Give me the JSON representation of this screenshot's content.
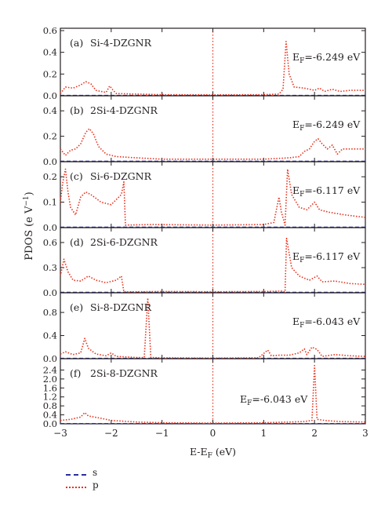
{
  "chart_data": {
    "type": "line",
    "xlabel_main": "E-E",
    "xlabel_sub": "F",
    "xlabel_unit": " (eV)",
    "ylabel_main": "PDOS (e V",
    "ylabel_sup": "−1",
    "ylabel_close": ")",
    "xlim": [
      -3,
      3
    ],
    "x_ticks": [
      -3,
      -2,
      -1,
      0,
      1,
      2,
      3
    ],
    "x_tick_labels": [
      "−3",
      "−2",
      "−1",
      "0",
      "1",
      "2",
      "3"
    ],
    "colors": {
      "s": "#2b2d9c",
      "p": "#e8301c",
      "axis": "#231f20"
    },
    "legend": [
      {
        "key": "s",
        "label": "s",
        "style": "dashed"
      },
      {
        "key": "p",
        "label": "p",
        "style": "dotted"
      }
    ],
    "panels": [
      {
        "tag": "(a)",
        "name": "Si-4-DZGNR",
        "ef_label": "E",
        "ef_sub": "F",
        "ef_value": "=-6.249 eV",
        "ylim": [
          0,
          0.6
        ],
        "yticks": [
          0.0,
          0.2,
          0.4,
          0.6
        ],
        "ytick_labels": [
          "0.0",
          "0.2",
          "0.4",
          "0.6"
        ],
        "s": [
          [
            -3,
            0.003
          ],
          [
            3,
            0.003
          ]
        ],
        "p": [
          [
            -3,
            0.02
          ],
          [
            -2.9,
            0.08
          ],
          [
            -2.75,
            0.07
          ],
          [
            -2.6,
            0.1
          ],
          [
            -2.5,
            0.13
          ],
          [
            -2.4,
            0.11
          ],
          [
            -2.3,
            0.05
          ],
          [
            -2.2,
            0.04
          ],
          [
            -2.1,
            0.03
          ],
          [
            -2.03,
            0.09
          ],
          [
            -1.96,
            0.05
          ],
          [
            -1.9,
            0.02
          ],
          [
            -1.5,
            0.015
          ],
          [
            -1.0,
            0.01
          ],
          [
            0,
            0.008
          ],
          [
            1.0,
            0.01
          ],
          [
            1.3,
            0.015
          ],
          [
            1.38,
            0.06
          ],
          [
            1.44,
            0.5
          ],
          [
            1.5,
            0.2
          ],
          [
            1.6,
            0.08
          ],
          [
            1.8,
            0.07
          ],
          [
            2.0,
            0.05
          ],
          [
            2.1,
            0.07
          ],
          [
            2.2,
            0.04
          ],
          [
            2.35,
            0.06
          ],
          [
            2.5,
            0.04
          ],
          [
            2.7,
            0.05
          ],
          [
            3,
            0.05
          ]
        ]
      },
      {
        "tag": "(b)",
        "name": "2Si-4-DZGNR",
        "ef_label": "E",
        "ef_sub": "F",
        "ef_value": "=-6.249 eV",
        "ylim": [
          0,
          0.5
        ],
        "yticks": [
          0.0,
          0.2,
          0.4
        ],
        "ytick_labels": [
          "0.0",
          "0.2",
          "0.4"
        ],
        "s": [
          [
            -3,
            0.004
          ],
          [
            3,
            0.004
          ]
        ],
        "p": [
          [
            -3,
            0.1
          ],
          [
            -2.9,
            0.05
          ],
          [
            -2.8,
            0.09
          ],
          [
            -2.7,
            0.1
          ],
          [
            -2.6,
            0.14
          ],
          [
            -2.5,
            0.23
          ],
          [
            -2.43,
            0.26
          ],
          [
            -2.35,
            0.22
          ],
          [
            -2.25,
            0.12
          ],
          [
            -2.1,
            0.06
          ],
          [
            -1.9,
            0.04
          ],
          [
            -1.5,
            0.03
          ],
          [
            -1.0,
            0.02
          ],
          [
            0,
            0.02
          ],
          [
            1.0,
            0.02
          ],
          [
            1.5,
            0.03
          ],
          [
            1.7,
            0.04
          ],
          [
            1.8,
            0.08
          ],
          [
            1.9,
            0.1
          ],
          [
            2.0,
            0.16
          ],
          [
            2.07,
            0.18
          ],
          [
            2.15,
            0.14
          ],
          [
            2.25,
            0.1
          ],
          [
            2.35,
            0.13
          ],
          [
            2.45,
            0.06
          ],
          [
            2.55,
            0.1
          ],
          [
            2.7,
            0.1
          ],
          [
            3,
            0.1
          ]
        ]
      },
      {
        "tag": "(c)",
        "name": "Si-6-DZGNR",
        "ef_label": "E",
        "ef_sub": "F",
        "ef_value": "=-6.117 eV",
        "ylim": [
          0,
          0.25
        ],
        "yticks": [
          0.0,
          0.1,
          0.2
        ],
        "ytick_labels": [
          "0.0",
          "0.1",
          "0.2"
        ],
        "s": [
          [
            -3,
            0.002
          ],
          [
            3,
            0.002
          ]
        ],
        "p": [
          [
            -3,
            0.1
          ],
          [
            -2.95,
            0.18
          ],
          [
            -2.9,
            0.23
          ],
          [
            -2.85,
            0.14
          ],
          [
            -2.8,
            0.08
          ],
          [
            -2.7,
            0.05
          ],
          [
            -2.6,
            0.12
          ],
          [
            -2.5,
            0.14
          ],
          [
            -2.4,
            0.13
          ],
          [
            -2.2,
            0.1
          ],
          [
            -2.0,
            0.09
          ],
          [
            -1.8,
            0.13
          ],
          [
            -1.75,
            0.18
          ],
          [
            -1.72,
            0.01
          ],
          [
            -1.2,
            0.012
          ],
          [
            0,
            0.01
          ],
          [
            1.0,
            0.012
          ],
          [
            1.2,
            0.02
          ],
          [
            1.3,
            0.12
          ],
          [
            1.35,
            0.06
          ],
          [
            1.42,
            0.01
          ],
          [
            1.47,
            0.23
          ],
          [
            1.55,
            0.13
          ],
          [
            1.7,
            0.08
          ],
          [
            1.85,
            0.07
          ],
          [
            2.0,
            0.1
          ],
          [
            2.1,
            0.07
          ],
          [
            2.3,
            0.06
          ],
          [
            2.6,
            0.05
          ],
          [
            3,
            0.04
          ]
        ]
      },
      {
        "tag": "(d)",
        "name": "2Si-6-DZGNR",
        "ef_label": "E",
        "ef_sub": "F",
        "ef_value": "=-6.117 eV",
        "ylim": [
          0,
          0.75
        ],
        "yticks": [
          0.0,
          0.3,
          0.6
        ],
        "ytick_labels": [
          "0.0",
          "0.3",
          "0.6"
        ],
        "s": [
          [
            -3,
            0.005
          ],
          [
            3,
            0.005
          ]
        ],
        "p": [
          [
            -3,
            0.2
          ],
          [
            -2.93,
            0.4
          ],
          [
            -2.85,
            0.25
          ],
          [
            -2.75,
            0.15
          ],
          [
            -2.6,
            0.14
          ],
          [
            -2.45,
            0.2
          ],
          [
            -2.3,
            0.15
          ],
          [
            -2.1,
            0.12
          ],
          [
            -1.9,
            0.15
          ],
          [
            -1.8,
            0.2
          ],
          [
            -1.75,
            0.01
          ],
          [
            -1.0,
            0.015
          ],
          [
            0,
            0.012
          ],
          [
            1.0,
            0.015
          ],
          [
            1.35,
            0.02
          ],
          [
            1.42,
            0.01
          ],
          [
            1.45,
            0.65
          ],
          [
            1.55,
            0.3
          ],
          [
            1.7,
            0.2
          ],
          [
            1.9,
            0.15
          ],
          [
            2.05,
            0.2
          ],
          [
            2.15,
            0.13
          ],
          [
            2.4,
            0.14
          ],
          [
            2.7,
            0.11
          ],
          [
            3,
            0.1
          ]
        ]
      },
      {
        "tag": "(e)",
        "name": "Si-8-DZGNR",
        "ef_label": "E",
        "ef_sub": "F",
        "ef_value": "=-6.043 eV",
        "ylim": [
          0,
          1.1
        ],
        "yticks": [
          0.0,
          0.4,
          0.8
        ],
        "ytick_labels": [
          "0.0",
          "0.4",
          "0.8"
        ],
        "s": [
          [
            -3,
            0.005
          ],
          [
            3,
            0.005
          ]
        ],
        "p": [
          [
            -3,
            0.08
          ],
          [
            -2.9,
            0.12
          ],
          [
            -2.75,
            0.07
          ],
          [
            -2.6,
            0.1
          ],
          [
            -2.52,
            0.35
          ],
          [
            -2.45,
            0.18
          ],
          [
            -2.3,
            0.08
          ],
          [
            -2.1,
            0.05
          ],
          [
            -2.0,
            0.1
          ],
          [
            -1.9,
            0.04
          ],
          [
            -1.5,
            0.02
          ],
          [
            -1.35,
            0.02
          ],
          [
            -1.28,
            1.05
          ],
          [
            -1.22,
            0.02
          ],
          [
            -1.0,
            0.015
          ],
          [
            0,
            0.01
          ],
          [
            0.9,
            0.015
          ],
          [
            1.08,
            0.15
          ],
          [
            1.15,
            0.05
          ],
          [
            1.3,
            0.06
          ],
          [
            1.5,
            0.06
          ],
          [
            1.7,
            0.1
          ],
          [
            1.8,
            0.17
          ],
          [
            1.85,
            0.07
          ],
          [
            1.95,
            0.2
          ],
          [
            2.05,
            0.16
          ],
          [
            2.15,
            0.04
          ],
          [
            2.4,
            0.07
          ],
          [
            2.7,
            0.05
          ],
          [
            3,
            0.04
          ]
        ]
      },
      {
        "tag": "(f)",
        "name": "2Si-8-DZGNR",
        "ef_label": "E",
        "ef_sub": "F",
        "ef_value": "=-6.043 eV",
        "ylim": [
          0,
          2.8
        ],
        "yticks": [
          0.0,
          0.4,
          0.8,
          1.2,
          1.6,
          2.0,
          2.4
        ],
        "ytick_labels": [
          "0.0",
          "0.4",
          "0.8",
          "1.2",
          "1.6",
          "2.0",
          "2.4"
        ],
        "s": [
          [
            -3,
            0.01
          ],
          [
            3,
            0.01
          ]
        ],
        "p": [
          [
            -3,
            0.15
          ],
          [
            -2.8,
            0.2
          ],
          [
            -2.6,
            0.3
          ],
          [
            -2.52,
            0.5
          ],
          [
            -2.45,
            0.35
          ],
          [
            -2.2,
            0.25
          ],
          [
            -2.0,
            0.15
          ],
          [
            -1.5,
            0.08
          ],
          [
            -1.0,
            0.05
          ],
          [
            0,
            0.03
          ],
          [
            1.0,
            0.05
          ],
          [
            1.5,
            0.08
          ],
          [
            1.8,
            0.1
          ],
          [
            1.95,
            0.15
          ],
          [
            2.0,
            2.6
          ],
          [
            2.05,
            0.2
          ],
          [
            2.2,
            0.15
          ],
          [
            2.5,
            0.1
          ],
          [
            3,
            0.08
          ]
        ]
      }
    ]
  }
}
